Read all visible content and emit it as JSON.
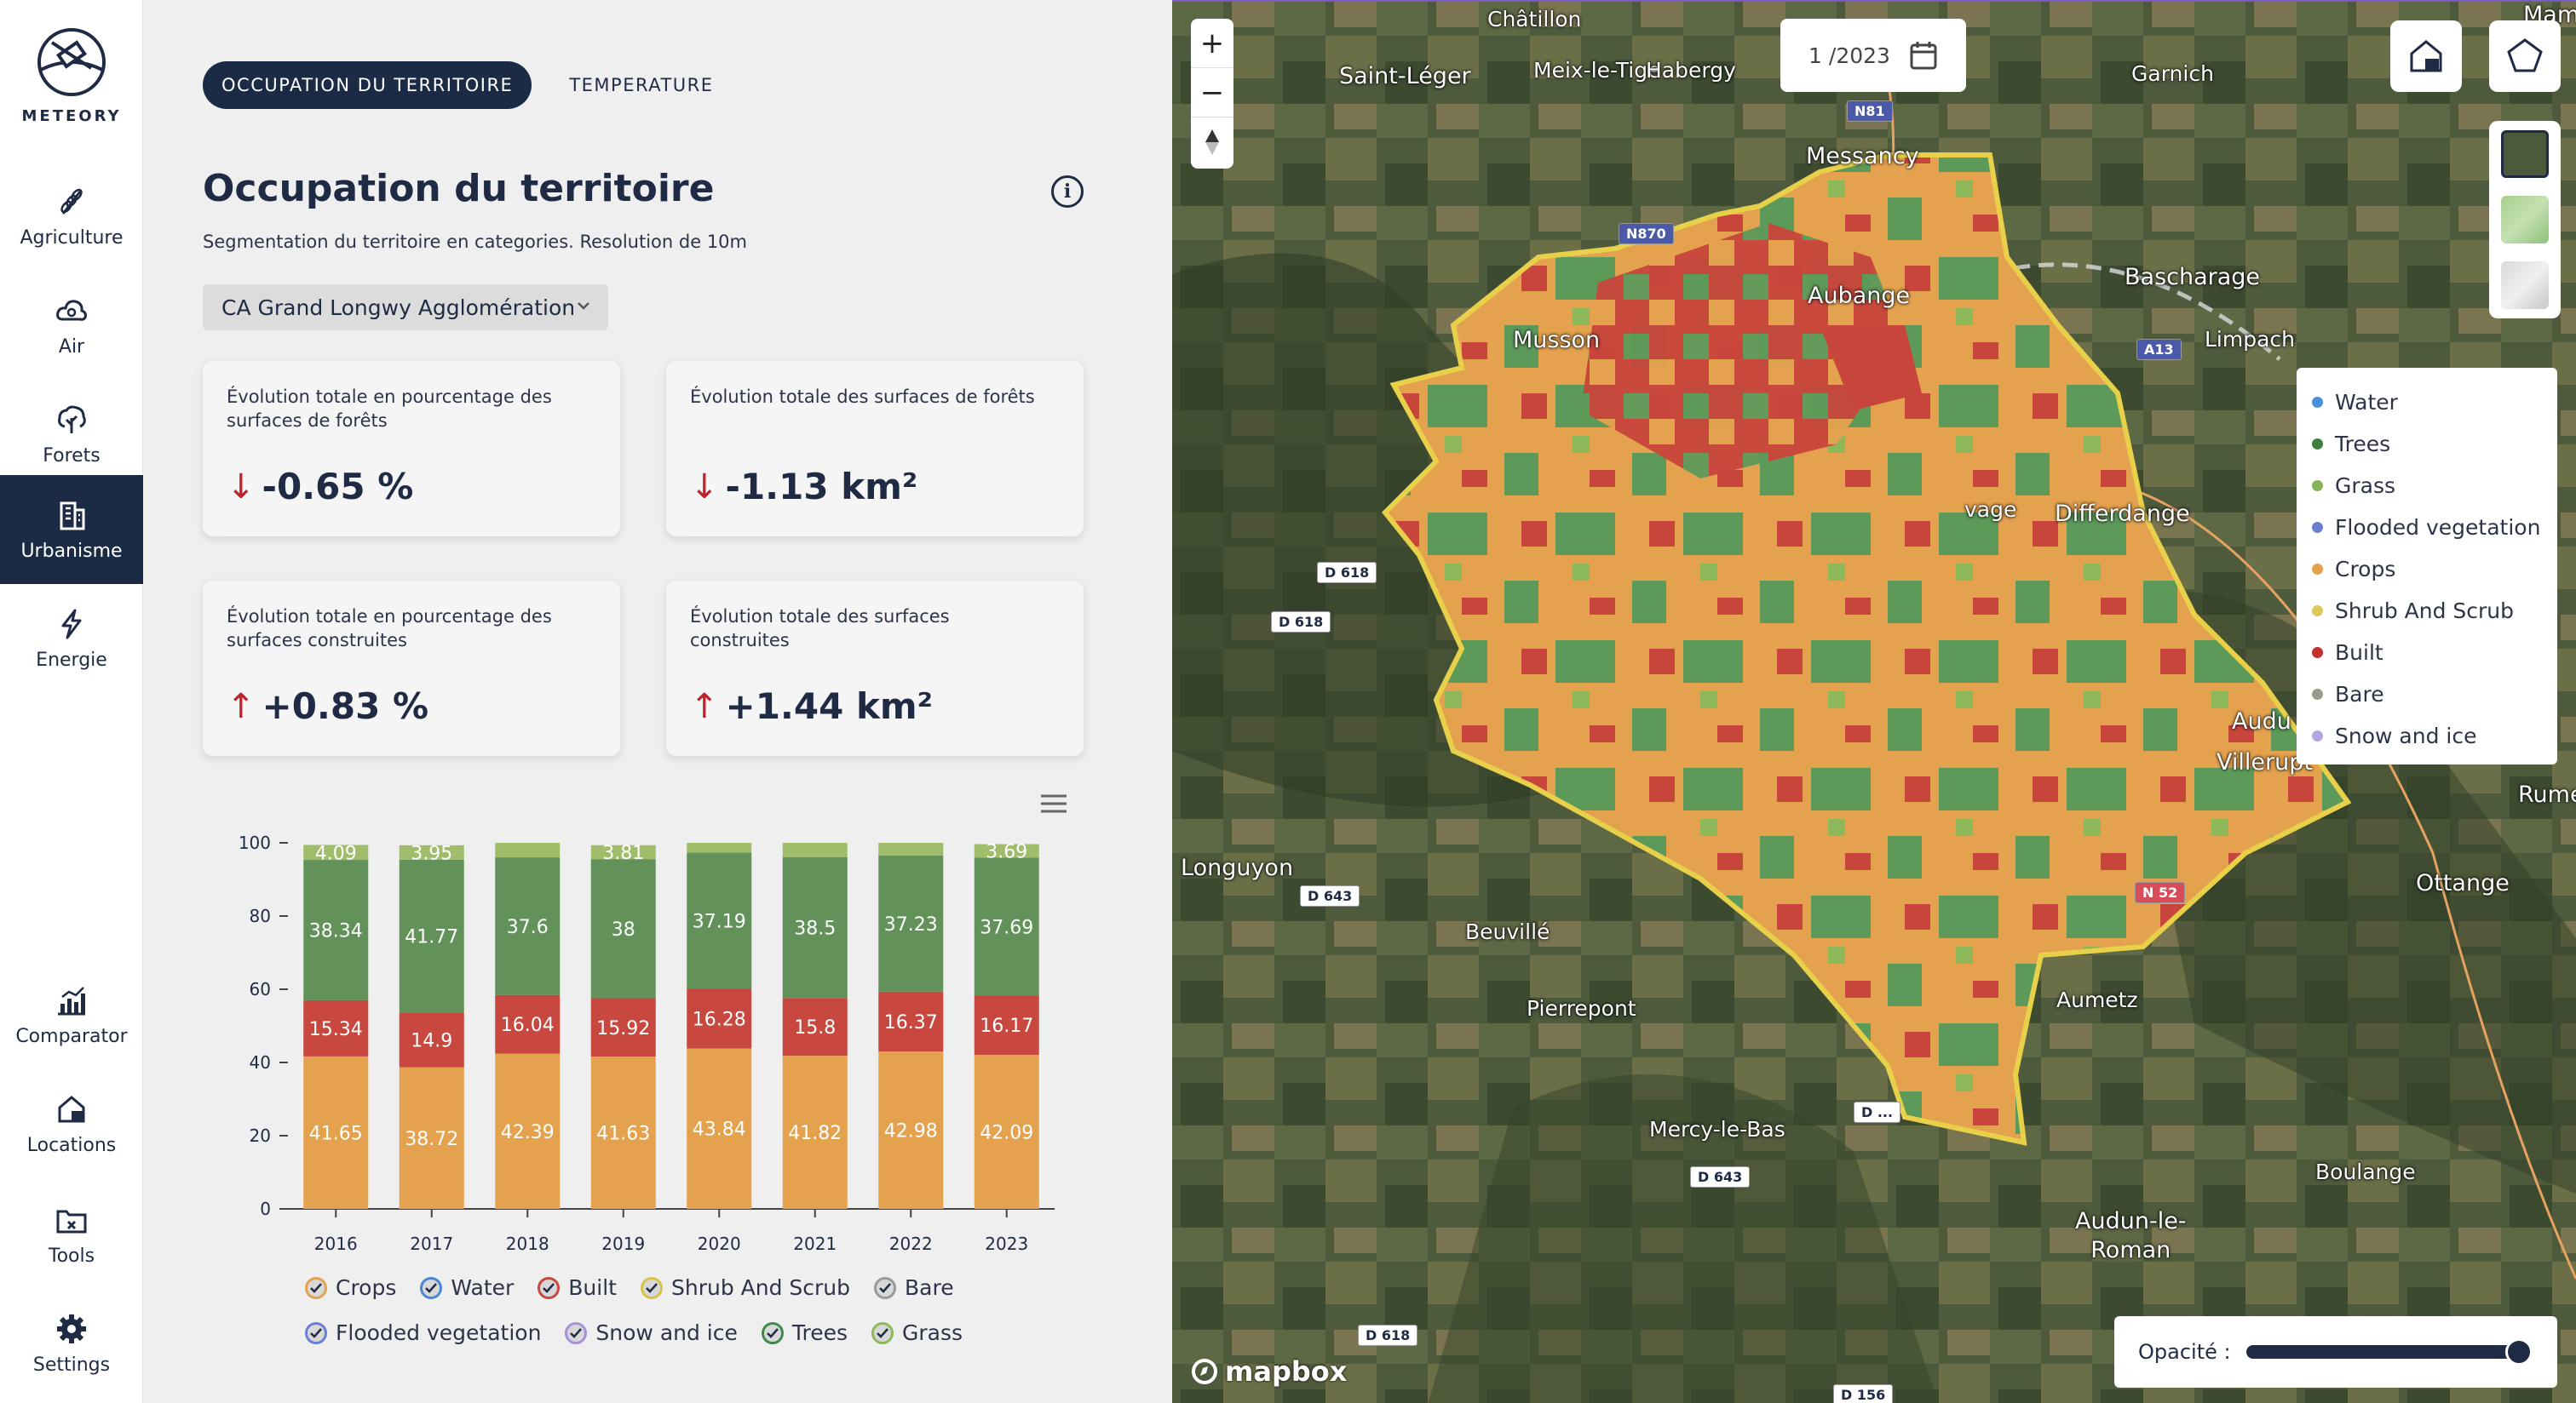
{
  "app": {
    "name": "METEORY"
  },
  "sidebar": {
    "items": [
      {
        "label": "Agriculture",
        "icon": "wheat-icon"
      },
      {
        "label": "Air",
        "icon": "cloud-icon"
      },
      {
        "label": "Forets",
        "icon": "tree-icon"
      },
      {
        "label": "Urbanisme",
        "icon": "building-icon",
        "active": true
      },
      {
        "label": "Energie",
        "icon": "lightning-icon"
      }
    ],
    "bottom": [
      {
        "label": "Comparator",
        "icon": "chart-icon"
      },
      {
        "label": "Locations",
        "icon": "home-location-icon"
      },
      {
        "label": "Tools",
        "icon": "folder-tools-icon"
      },
      {
        "label": "Settings",
        "icon": "gear-icon"
      }
    ]
  },
  "tabs": [
    {
      "label": "OCCUPATION DU TERRITOIRE",
      "active": true
    },
    {
      "label": "TEMPERATURE",
      "active": false
    }
  ],
  "page": {
    "title": "Occupation du territoire",
    "subtitle": "Segmentation du territoire en categories. Resolution de 10m",
    "info": "i",
    "region": "CA Grand Longwy Agglomération"
  },
  "cards": [
    {
      "label": "Évolution totale en pourcentage des surfaces de forêts",
      "value": "-0.65 %",
      "arrow": "↓"
    },
    {
      "label": "Évolution totale des surfaces de forêts",
      "value": "-1.13 km²",
      "arrow": "↓"
    },
    {
      "label": "Évolution totale en pourcentage des surfaces construites",
      "value": "+0.83 %",
      "arrow": "↑"
    },
    {
      "label": "Évolution totale des surfaces construites",
      "value": "+1.44 km²",
      "arrow": "↑"
    }
  ],
  "chart_data": {
    "type": "bar",
    "stacked": true,
    "categories": [
      "2016",
      "2017",
      "2018",
      "2019",
      "2020",
      "2021",
      "2022",
      "2023"
    ],
    "ylim": [
      0,
      100
    ],
    "yticks": [
      0,
      20,
      40,
      60,
      80,
      100
    ],
    "series": [
      {
        "name": "Crops",
        "color": "#e5a24e",
        "values": [
          41.65,
          38.72,
          42.39,
          41.63,
          43.84,
          41.82,
          42.98,
          42.09
        ]
      },
      {
        "name": "Built",
        "color": "#c8473f",
        "values": [
          15.34,
          14.9,
          16.04,
          15.92,
          16.28,
          15.8,
          16.37,
          16.17
        ]
      },
      {
        "name": "Trees",
        "color": "#62925a",
        "values": [
          38.34,
          41.77,
          37.6,
          38,
          37.19,
          38.5,
          37.23,
          37.69
        ]
      },
      {
        "name": "Grass",
        "color": "#9fbd6b",
        "values": [
          4.09,
          3.95,
          3.97,
          3.81,
          2.69,
          3.88,
          3.42,
          3.69
        ]
      }
    ],
    "labels": [
      {
        "series": "Grass",
        "index": 0,
        "text": "4.09"
      },
      {
        "series": "Grass",
        "index": 1,
        "text": "3.95"
      },
      {
        "series": "Grass",
        "index": 3,
        "text": "3.81"
      },
      {
        "series": "Grass",
        "index": 7,
        "text": "3.69"
      }
    ],
    "legend": [
      {
        "name": "Crops",
        "color": "#e5a24e"
      },
      {
        "name": "Water",
        "color": "#4a86d6"
      },
      {
        "name": "Built",
        "color": "#c8473f"
      },
      {
        "name": "Shrub And Scrub",
        "color": "#d8c24a"
      },
      {
        "name": "Bare",
        "color": "#9a9a9a"
      },
      {
        "name": "Flooded vegetation",
        "color": "#6a7fd6"
      },
      {
        "name": "Snow and ice",
        "color": "#a691d8"
      },
      {
        "name": "Trees",
        "color": "#3f8a4a"
      },
      {
        "name": "Grass",
        "color": "#8db85a"
      }
    ]
  },
  "map": {
    "date": "1 /2023",
    "zoom_in": "+",
    "zoom_out": "−",
    "opacity_label": "Opacité :",
    "opacity": 1.0,
    "attribution": "mapbox",
    "places": [
      {
        "name": "Châtillon"
      },
      {
        "name": "Saint-Léger"
      },
      {
        "name": "Meix-le-Tige"
      },
      {
        "name": "Habergy"
      },
      {
        "name": "Messancy"
      },
      {
        "name": "Garnich"
      },
      {
        "name": "Aubange"
      },
      {
        "name": "Bascharage"
      },
      {
        "name": "Musson"
      },
      {
        "name": "Limpach"
      },
      {
        "name": "Differdange"
      },
      {
        "name": "Villerupt"
      },
      {
        "name": "Longuyon"
      },
      {
        "name": "Beuvillé"
      },
      {
        "name": "Pierrepont"
      },
      {
        "name": "Mercy-le-Bas"
      },
      {
        "name": "Aumetz"
      },
      {
        "name": "Boulange"
      },
      {
        "name": "Ottange"
      },
      {
        "name": "Audun-le-\nRoman"
      },
      {
        "name": "Rumela"
      },
      {
        "name": "Mamer"
      },
      {
        "name": "vage"
      },
      {
        "name": "Audu"
      }
    ],
    "roads": [
      {
        "name": "N81"
      },
      {
        "name": "N870"
      },
      {
        "name": "A13"
      },
      {
        "name": "D 618"
      },
      {
        "name": "D 618"
      },
      {
        "name": "D 643"
      },
      {
        "name": "N 52"
      },
      {
        "name": "D 643"
      },
      {
        "name": "D 618"
      },
      {
        "name": "D 156"
      },
      {
        "name": "D ..."
      }
    ],
    "legend": [
      {
        "name": "Water",
        "color": "#4a90d9"
      },
      {
        "name": "Trees",
        "color": "#3e7f3e"
      },
      {
        "name": "Grass",
        "color": "#86b35a"
      },
      {
        "name": "Flooded vegetation",
        "color": "#6a7fd0"
      },
      {
        "name": "Crops",
        "color": "#e5a24e"
      },
      {
        "name": "Shrub And Scrub",
        "color": "#dcc85a"
      },
      {
        "name": "Built",
        "color": "#c4302b"
      },
      {
        "name": "Bare",
        "color": "#9a9a8a"
      },
      {
        "name": "Snow and ice",
        "color": "#b4a4e0"
      }
    ]
  }
}
